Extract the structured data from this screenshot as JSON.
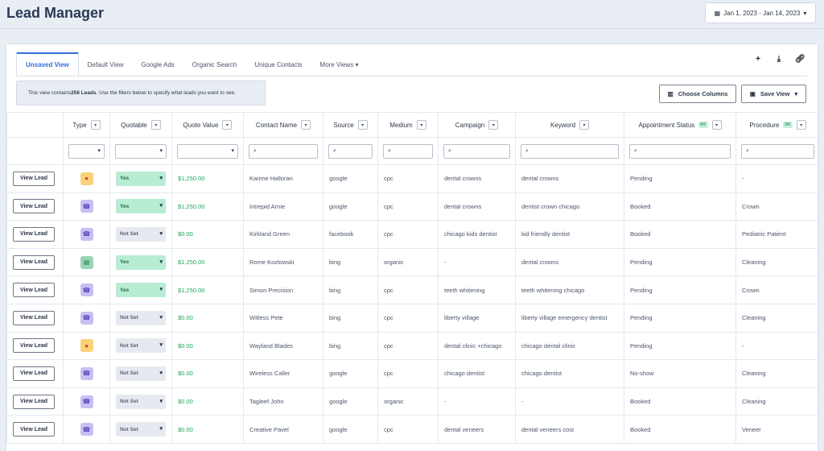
{
  "header": {
    "title": "Lead Manager",
    "date_range": "Jan 1, 2023 - Jan 14, 2023"
  },
  "tabs": [
    "Unsaved View",
    "Default View",
    "Google Ads",
    "Organic Search",
    "Unique Contacts",
    "More Views"
  ],
  "info": {
    "prefix": "This view contains ",
    "count": "256 Leads",
    "suffix": ". Use the filters below to specify what leads you want to see."
  },
  "buttons": {
    "choose_columns": "Choose Columns",
    "save_view": "Save View",
    "view_lead": "View Lead"
  },
  "columns": [
    "Type",
    "Quotable",
    "Quote Value",
    "Contact Name",
    "Source",
    "Medium",
    "Campaign",
    "Keyword",
    "Appointment Status",
    "Procedure"
  ],
  "mf_badge": "MF",
  "colors": {
    "accent": "#2f6fd8",
    "green": "#1fa463"
  },
  "rows": [
    {
      "type": "chat",
      "quotable": "Yes",
      "quote_value": "$1,250.00",
      "contact": "Karime Halloran",
      "source": "google",
      "medium": "cpc",
      "campaign": "dental crowns",
      "keyword": "dental crowns",
      "status": "Pending",
      "procedure": "-"
    },
    {
      "type": "call",
      "quotable": "Yes",
      "quote_value": "$1,250.00",
      "contact": "Intrepid Arnie",
      "source": "google",
      "medium": "cpc",
      "campaign": "dental crowns",
      "keyword": "dentist crown chicago",
      "status": "Booked",
      "procedure": "Crown"
    },
    {
      "type": "call",
      "quotable": "Not Set",
      "quote_value": "$0.00",
      "contact": "Kirkland Green",
      "source": "facebook",
      "medium": "cpc",
      "campaign": "chicago kids dentist",
      "keyword": "kid friendly dentist",
      "status": "Booked",
      "procedure": "Pediatric Patient"
    },
    {
      "type": "form",
      "quotable": "Yes",
      "quote_value": "$1,250.00",
      "contact": "Rome Kozlowski",
      "source": "bing",
      "medium": "organic",
      "campaign": "-",
      "keyword": "dental crowns",
      "status": "Pending",
      "procedure": "Cleaning"
    },
    {
      "type": "call",
      "quotable": "Yes",
      "quote_value": "$1,250.00",
      "contact": "Simon Precision",
      "source": "bing",
      "medium": "cpc",
      "campaign": "teeth whitening",
      "keyword": "teeth whitening chicago",
      "status": "Pending",
      "procedure": "Crown"
    },
    {
      "type": "call",
      "quotable": "Not Set",
      "quote_value": "$0.00",
      "contact": "Witless Pete",
      "source": "bing",
      "medium": "cpc",
      "campaign": "liberty village",
      "keyword": "liberty village emergency dentist",
      "status": "Pending",
      "procedure": "Cleaning"
    },
    {
      "type": "chat",
      "quotable": "Not Set",
      "quote_value": "$0.00",
      "contact": "Wayland Blades",
      "source": "bing",
      "medium": "cpc",
      "campaign": "dental clinic +chicago",
      "keyword": "chicago dental clinic",
      "status": "Pending",
      "procedure": "-"
    },
    {
      "type": "call",
      "quotable": "Not Set",
      "quote_value": "$0.00",
      "contact": "Wireless Caller",
      "source": "google",
      "medium": "cpc",
      "campaign": "chicago dentist",
      "keyword": "chicago dentist",
      "status": "No-show",
      "procedure": "Cleaning"
    },
    {
      "type": "call",
      "quotable": "Not Set",
      "quote_value": "$0.00",
      "contact": "Tagleef John",
      "source": "google",
      "medium": "organic",
      "campaign": "-",
      "keyword": "-",
      "status": "Booked",
      "procedure": "Cleaning"
    },
    {
      "type": "call",
      "quotable": "Not Set",
      "quote_value": "$0.00",
      "contact": "Creative Pavel",
      "source": "google",
      "medium": "cpc",
      "campaign": "dental veneers",
      "keyword": "dental veneers cost",
      "status": "Booked",
      "procedure": "Veneer"
    }
  ]
}
